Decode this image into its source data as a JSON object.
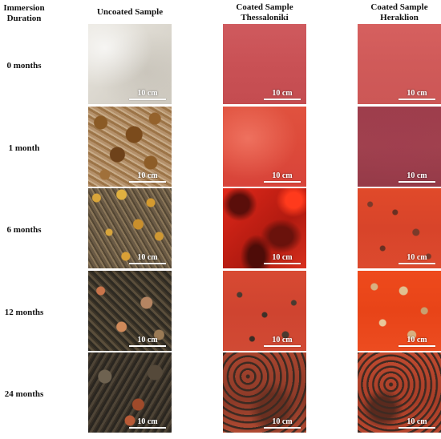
{
  "headers": {
    "duration": [
      "Immersion",
      "Duration"
    ],
    "columns": [
      [
        "Uncoated Sample"
      ],
      [
        "Coated Sample",
        "Thessaloniki"
      ],
      [
        "Coated Sample",
        "Heraklion"
      ]
    ]
  },
  "rows": [
    {
      "label": "0 months"
    },
    {
      "label": "1 month"
    },
    {
      "label": "6 months"
    },
    {
      "label": "12 months"
    },
    {
      "label": "24 months"
    }
  ],
  "scale_label": "10 cm"
}
